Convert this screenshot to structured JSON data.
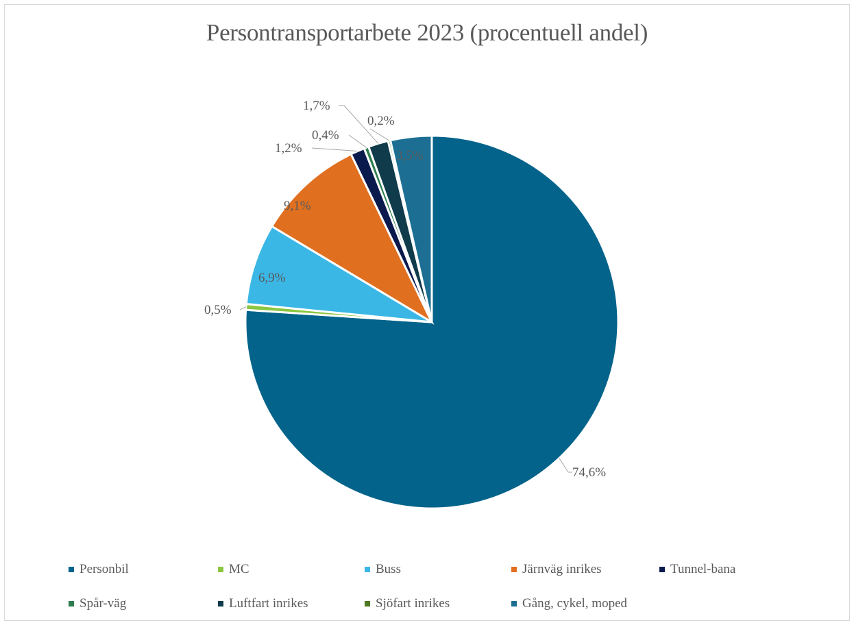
{
  "chart_data": {
    "type": "pie",
    "title": "Persontransportarbete 2023 (procentuell andel)",
    "legend_position": "bottom",
    "categories": [
      "Personbil",
      "MC",
      "Buss",
      "Järnväg inrikes",
      "Tunnel-bana",
      "Spår-väg",
      "Luftfart inrikes",
      "Sjöfart inrikes",
      "Gång, cykel, moped"
    ],
    "values": [
      74.6,
      0.5,
      6.9,
      9.1,
      1.2,
      0.4,
      1.7,
      0.2,
      3.5
    ],
    "labels": [
      "74,6%",
      "0,5%",
      "6,9%",
      "9,1%",
      "1,2%",
      "0,4%",
      "1,7%",
      "0,2%",
      "3,5%"
    ],
    "colors": [
      "#03638a",
      "#8cc63f",
      "#3bb7e6",
      "#e07020",
      "#0a1a4d",
      "#2e7d4f",
      "#0f3b4a",
      "#4f7a21",
      "#1c6f93"
    ]
  }
}
